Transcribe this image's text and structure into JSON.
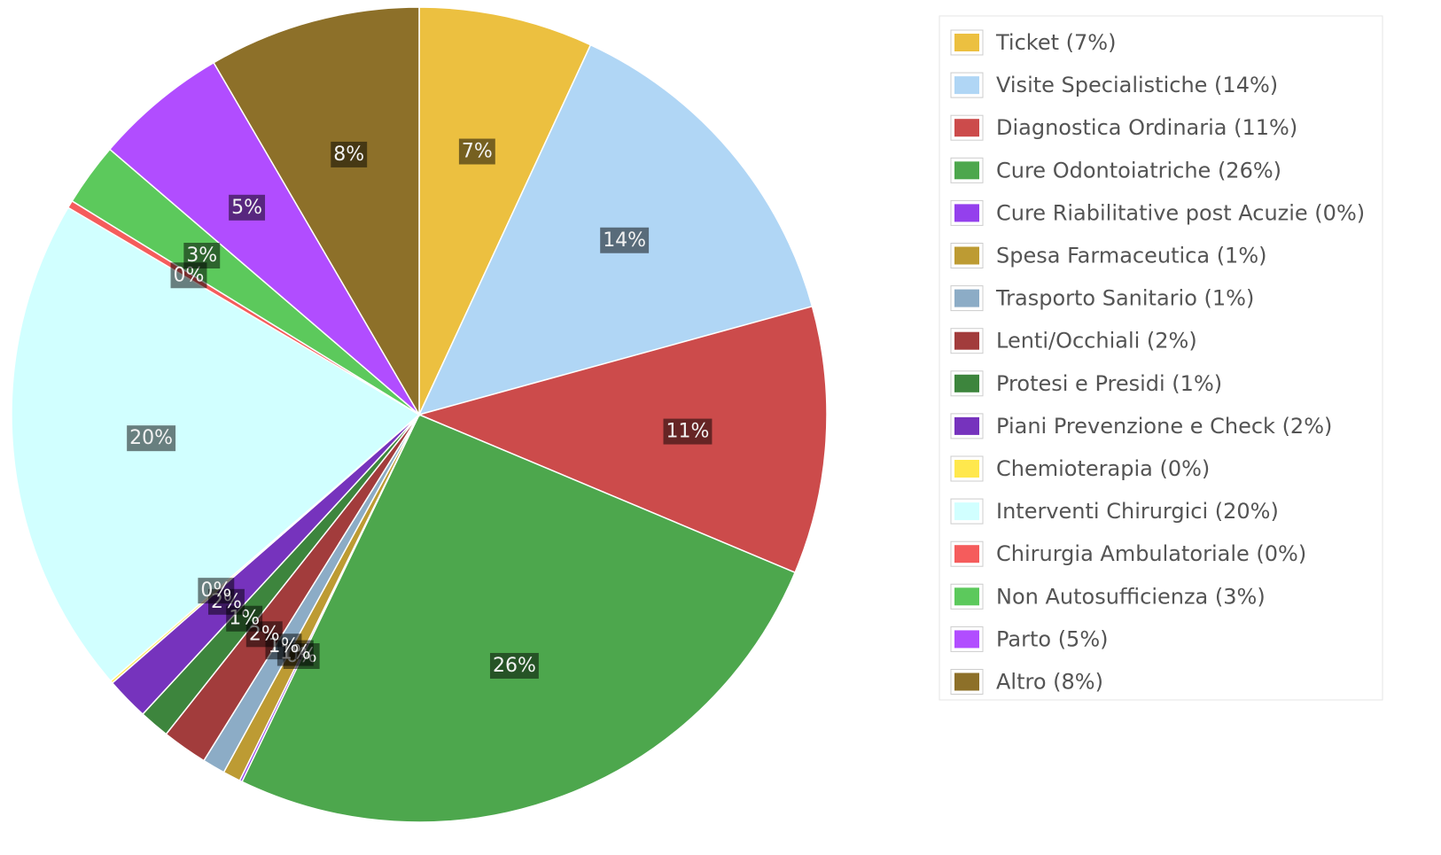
{
  "chart_data": {
    "type": "pie",
    "categories": [
      "Ticket (7%)",
      "Visite Specialistiche (14%)",
      "Diagnostica Ordinaria (11%)",
      "Cure Odontoiatriche (26%)",
      "Cure Riabilitative post Acuzie (0%)",
      "Spesa Farmaceutica (1%)",
      "Trasporto Sanitario (1%)",
      "Lenti/Occhiali (2%)",
      "Protesi e Presidi (1%)",
      "Piani Prevenzione e Check (2%)",
      "Chemioterapia (0%)",
      "Interventi Chirurgici (20%)",
      "Chirurgia Ambulatoriale (0%)",
      "Non Autosufficienza (3%)",
      "Parto (5%)",
      "Altro (8%)"
    ],
    "values": [
      6.9,
      13.8,
      10.6,
      25.8,
      0.1,
      0.7,
      0.9,
      1.8,
      1.2,
      1.7,
      0.1,
      19.8,
      0.3,
      2.5,
      5.3,
      8.4
    ],
    "value_labels": [
      "7%",
      "14%",
      "11%",
      "26%",
      "0%",
      "1%",
      "1%",
      "2%",
      "1%",
      "2%",
      "0%",
      "20%",
      "0%",
      "3%",
      "5%",
      "8%"
    ],
    "colors": [
      "#ecc040",
      "#b0d6f5",
      "#cc4b4b",
      "#4da74d",
      "#9440ed",
      "#bd9b33",
      "#8cacc6",
      "#a23c3c",
      "#3d853d",
      "#7633bd",
      "#ffe84d",
      "#d1ffff",
      "#f55c5c",
      "#5cc95c",
      "#b14dff",
      "#8d7029"
    ],
    "legend": "right"
  }
}
